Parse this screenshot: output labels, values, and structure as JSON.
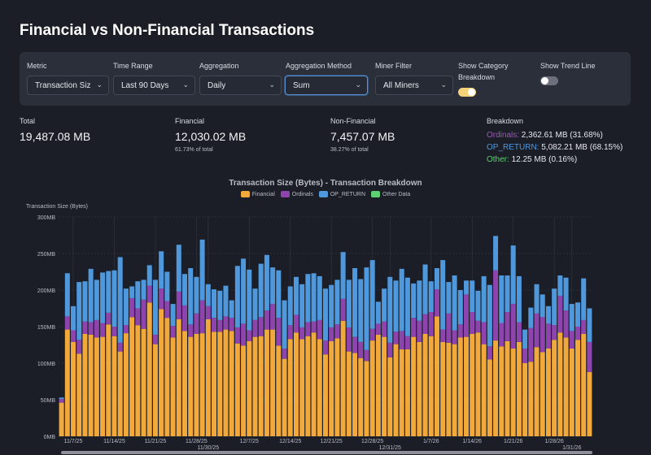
{
  "title": "Financial vs Non-Financial Transactions",
  "controls": {
    "metric": {
      "label": "Metric",
      "value": "Transaction Size"
    },
    "time_range": {
      "label": "Time Range",
      "value": "Last 90 Days"
    },
    "aggregation": {
      "label": "Aggregation",
      "value": "Daily"
    },
    "aggregation_method": {
      "label": "Aggregation Method",
      "value": "Sum"
    },
    "miner_filter": {
      "label": "Miner Filter",
      "value": "All Miners"
    },
    "show_category_breakdown": {
      "label": "Show Category Breakdown",
      "on": true
    },
    "show_trend_line": {
      "label": "Show Trend Line",
      "on": false
    }
  },
  "stats": {
    "total": {
      "label": "Total",
      "value": "19,487.08 MB"
    },
    "financial": {
      "label": "Financial",
      "value": "12,030.02 MB",
      "sub": "61.73% of total"
    },
    "non_financial": {
      "label": "Non-Financial",
      "value": "7,457.07 MB",
      "sub": "38.27% of total"
    },
    "breakdown": {
      "label": "Breakdown",
      "ordinals": {
        "name": "Ordinals:",
        "value": "2,362.61 MB (31.68%)"
      },
      "op_return": {
        "name": "OP_RETURN:",
        "value": "5,082.21 MB (68.15%)"
      },
      "other": {
        "name": "Other:",
        "value": "12.25 MB (0.16%)"
      }
    }
  },
  "colors": {
    "financial": "#f2a93b",
    "ordinals": "#8e44ad",
    "op_return": "#4f98dc",
    "other": "#5fcf73",
    "accent_toggle": "#f4d27a"
  },
  "chart_data": {
    "type": "bar",
    "stacked": true,
    "title": "Transaction Size (Bytes) - Transaction Breakdown",
    "ylabel": "Transaction Size (Bytes)",
    "ylim": [
      0,
      300
    ],
    "yunit": "MB",
    "yticks": [
      "0MB",
      "50MB",
      "100MB",
      "150MB",
      "200MB",
      "250MB",
      "300MB"
    ],
    "legend_position": "top",
    "grid": true,
    "start_date": "11/5/25",
    "xticks": [
      {
        "label": "11/7/25",
        "index": 2
      },
      {
        "label": "11/14/25",
        "index": 9
      },
      {
        "label": "11/21/25",
        "index": 16
      },
      {
        "label": "11/28/25",
        "index": 23
      },
      {
        "label": "11/30/25",
        "index": 25
      },
      {
        "label": "12/7/25",
        "index": 32
      },
      {
        "label": "12/14/25",
        "index": 39
      },
      {
        "label": "12/21/25",
        "index": 46
      },
      {
        "label": "12/28/25",
        "index": 53
      },
      {
        "label": "12/31/25",
        "index": 56
      },
      {
        "label": "1/7/26",
        "index": 63
      },
      {
        "label": "1/14/26",
        "index": 70
      },
      {
        "label": "1/21/26",
        "index": 77
      },
      {
        "label": "1/28/26",
        "index": 84
      },
      {
        "label": "1/31/26",
        "index": 87
      }
    ],
    "series": [
      {
        "name": "Financial",
        "values": [
          46,
          146,
          129,
          113,
          140,
          139,
          135,
          136,
          153,
          137,
          116,
          141,
          163,
          152,
          147,
          183,
          126,
          174,
          162,
          135,
          160,
          144,
          136,
          140,
          141,
          160,
          143,
          143,
          146,
          144,
          127,
          124,
          130,
          136,
          137,
          146,
          146,
          124,
          106,
          133,
          142,
          133,
          137,
          142,
          133,
          112,
          130,
          134,
          158,
          116,
          114,
          107,
          103,
          131,
          139,
          136,
          108,
          126,
          119,
          119,
          136,
          129,
          140,
          137,
          164,
          129,
          128,
          126,
          135,
          136,
          140,
          142,
          126,
          105,
          131,
          123,
          130,
          120,
          129,
          100,
          102,
          122,
          115,
          120,
          132,
          142,
          135,
          120,
          132,
          140,
          88
        ]
      },
      {
        "name": "Ordinals",
        "values": [
          5,
          18,
          16,
          19,
          17,
          17,
          24,
          19,
          16,
          13,
          12,
          11,
          26,
          23,
          40,
          23,
          13,
          28,
          23,
          16,
          38,
          35,
          17,
          28,
          45,
          18,
          19,
          16,
          18,
          18,
          22,
          30,
          15,
          23,
          26,
          26,
          35,
          38,
          14,
          19,
          24,
          16,
          19,
          15,
          26,
          19,
          19,
          19,
          30,
          33,
          22,
          22,
          15,
          16,
          15,
          21,
          20,
          17,
          25,
          18,
          26,
          29,
          27,
          33,
          37,
          17,
          40,
          19,
          18,
          58,
          30,
          16,
          30,
          18,
          96,
          32,
          40,
          61,
          27,
          20,
          46,
          46,
          48,
          34,
          20,
          50,
          37,
          24,
          18,
          19,
          41
        ]
      },
      {
        "name": "OP_RETURN",
        "values": [
          2,
          59,
          33,
          79,
          55,
          73,
          55,
          69,
          57,
          77,
          117,
          50,
          16,
          37,
          27,
          28,
          75,
          51,
          40,
          30,
          64,
          43,
          77,
          50,
          83,
          30,
          39,
          40,
          42,
          24,
          84,
          89,
          83,
          43,
          73,
          76,
          50,
          65,
          66,
          53,
          52,
          59,
          66,
          66,
          60,
          71,
          58,
          61,
          64,
          65,
          94,
          86,
          113,
          94,
          30,
          45,
          90,
          70,
          85,
          80,
          47,
          55,
          68,
          42,
          29,
          95,
          43,
          75,
          47,
          19,
          43,
          41,
          63,
          84,
          47,
          65,
          50,
          80,
          63,
          26,
          28,
          40,
          31,
          24,
          50,
          28,
          45,
          37,
          33,
          57,
          46
        ]
      },
      {
        "name": "Other Data",
        "values": []
      }
    ]
  }
}
